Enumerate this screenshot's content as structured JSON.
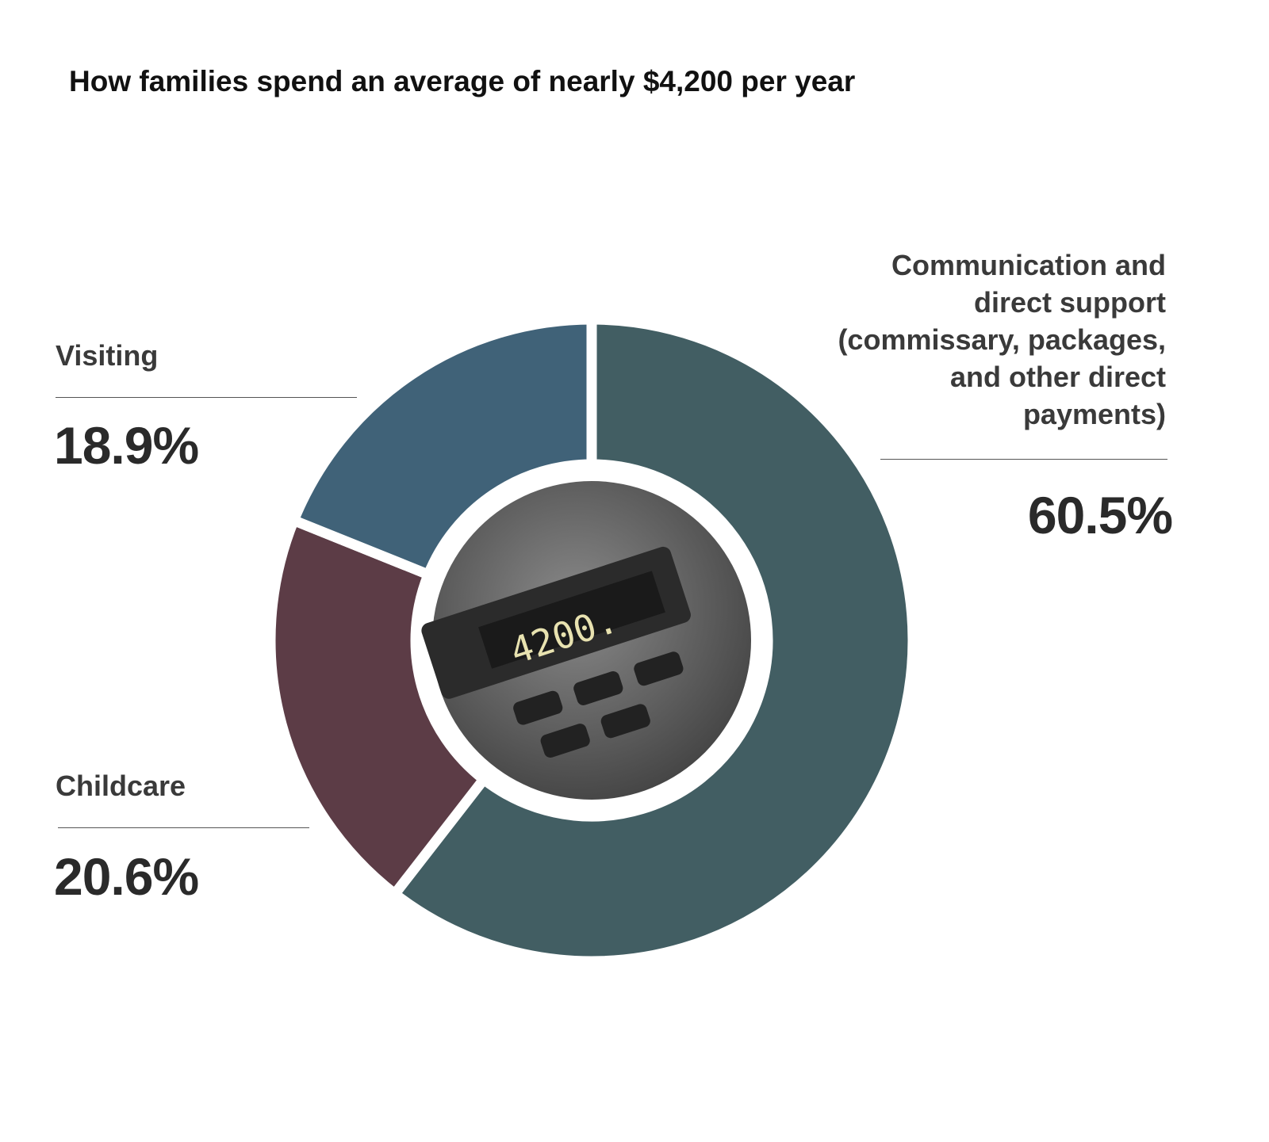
{
  "chart_data": {
    "type": "donut",
    "title": "How families spend an average of nearly $4,200 per year",
    "categories": [
      "Communication and direct support (commissary, packages, and other direct payments)",
      "Childcare",
      "Visiting"
    ],
    "values": [
      60.5,
      20.6,
      18.9
    ],
    "value_labels": [
      "60.5%",
      "20.6%",
      "18.9%"
    ],
    "colors": [
      "#425e63",
      "#5c3c46",
      "#406278"
    ],
    "center_text": "4200."
  }
}
